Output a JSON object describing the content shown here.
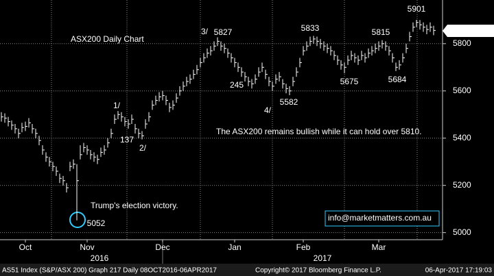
{
  "chart_data": {
    "type": "ohlc",
    "series_name": "AS51 Index (S&P/ASX 200) Graph 217  Daily 08OCT2016-06APR2017",
    "copyright": "Copyright© 2017 Bloomberg Finance L.P.",
    "timestamp": "06-Apr-2017 17:19:03",
    "years": [
      "2016",
      "2017"
    ],
    "xticks": [
      {
        "value": 7,
        "label": "Oct"
      },
      {
        "value": 25,
        "label": "Nov"
      },
      {
        "value": 47,
        "label": "Dec"
      },
      {
        "value": 68,
        "label": "Jan"
      },
      {
        "value": 88,
        "label": "Feb"
      },
      {
        "value": 110,
        "label": "Mar"
      }
    ],
    "ylim": [
      4970,
      5985
    ],
    "yticks": [
      5000,
      5200,
      5400,
      5600,
      5800
    ],
    "grid": true,
    "color": "#ffffff",
    "highs": [
      5510,
      5505,
      5490,
      5475,
      5460,
      5440,
      5465,
      5470,
      5485,
      5460,
      5440,
      5410,
      5370,
      5340,
      5320,
      5300,
      5280,
      5250,
      5240,
      5210,
      5300,
      5310,
      5290,
      5370,
      5380,
      5370,
      5350,
      5340,
      5330,
      5360,
      5370,
      5400,
      5440,
      5500,
      5515,
      5510,
      5490,
      5480,
      5500,
      5460,
      5440,
      5430,
      5480,
      5510,
      5560,
      5580,
      5595,
      5600,
      5580,
      5550,
      5560,
      5590,
      5620,
      5640,
      5660,
      5670,
      5690,
      5710,
      5740,
      5760,
      5780,
      5790,
      5810,
      5827,
      5810,
      5800,
      5780,
      5760,
      5740,
      5720,
      5700,
      5680,
      5660,
      5650,
      5670,
      5700,
      5720,
      5690,
      5660,
      5640,
      5670,
      5680,
      5650,
      5630,
      5620,
      5660,
      5700,
      5740,
      5790,
      5810,
      5830,
      5833,
      5830,
      5820,
      5810,
      5800,
      5790,
      5770,
      5750,
      5730,
      5720,
      5750,
      5770,
      5760,
      5750,
      5770,
      5760,
      5780,
      5790,
      5800,
      5810,
      5815,
      5810,
      5790,
      5760,
      5720,
      5730,
      5760,
      5800,
      5850,
      5890,
      5901,
      5900,
      5890,
      5880,
      5890,
      5876
    ],
    "lows": [
      5470,
      5465,
      5450,
      5435,
      5420,
      5400,
      5425,
      5430,
      5445,
      5420,
      5400,
      5370,
      5330,
      5300,
      5280,
      5260,
      5240,
      5210,
      5200,
      5170,
      5260,
      5270,
      5052,
      5310,
      5340,
      5330,
      5310,
      5300,
      5290,
      5320,
      5330,
      5360,
      5400,
      5460,
      5480,
      5470,
      5450,
      5440,
      5460,
      5420,
      5400,
      5395,
      5440,
      5470,
      5520,
      5540,
      5555,
      5560,
      5540,
      5510,
      5520,
      5550,
      5580,
      5600,
      5620,
      5630,
      5650,
      5670,
      5700,
      5720,
      5740,
      5750,
      5770,
      5790,
      5770,
      5760,
      5740,
      5720,
      5700,
      5680,
      5660,
      5640,
      5620,
      5610,
      5630,
      5660,
      5680,
      5650,
      5620,
      5600,
      5630,
      5640,
      5610,
      5590,
      5582,
      5620,
      5660,
      5700,
      5750,
      5770,
      5790,
      5800,
      5790,
      5780,
      5770,
      5760,
      5750,
      5730,
      5710,
      5690,
      5675,
      5710,
      5730,
      5720,
      5710,
      5730,
      5720,
      5740,
      5750,
      5760,
      5770,
      5780,
      5770,
      5750,
      5720,
      5684,
      5690,
      5720,
      5760,
      5810,
      5850,
      5870,
      5860,
      5850,
      5840,
      5850,
      5836
    ],
    "closes": [
      5490,
      5485,
      5470,
      5455,
      5440,
      5420,
      5445,
      5450,
      5465,
      5440,
      5420,
      5390,
      5350,
      5320,
      5300,
      5280,
      5260,
      5230,
      5220,
      5190,
      5280,
      5290,
      5220,
      5330,
      5360,
      5350,
      5330,
      5320,
      5310,
      5340,
      5350,
      5380,
      5420,
      5480,
      5500,
      5490,
      5470,
      5460,
      5480,
      5440,
      5420,
      5410,
      5460,
      5490,
      5540,
      5560,
      5575,
      5580,
      5560,
      5530,
      5540,
      5570,
      5600,
      5620,
      5640,
      5650,
      5670,
      5690,
      5720,
      5740,
      5760,
      5770,
      5790,
      5810,
      5790,
      5780,
      5760,
      5740,
      5720,
      5700,
      5680,
      5660,
      5640,
      5630,
      5650,
      5680,
      5700,
      5670,
      5640,
      5620,
      5650,
      5660,
      5630,
      5610,
      5600,
      5640,
      5680,
      5720,
      5770,
      5790,
      5810,
      5820,
      5810,
      5800,
      5790,
      5780,
      5770,
      5750,
      5730,
      5710,
      5700,
      5730,
      5750,
      5740,
      5730,
      5750,
      5740,
      5760,
      5770,
      5780,
      5790,
      5800,
      5790,
      5770,
      5740,
      5700,
      5710,
      5740,
      5780,
      5830,
      5870,
      5890,
      5880,
      5870,
      5860,
      5870,
      5856.2852
    ],
    "annotations": [
      "ASX200 Daily Chart",
      "3/",
      "245",
      "4/",
      "1/",
      "137",
      "2/",
      "The ASX200 remains bullish while it can hold over 5810.",
      "Trump's election victory.",
      "info@marketmatters.com.au"
    ]
  }
}
